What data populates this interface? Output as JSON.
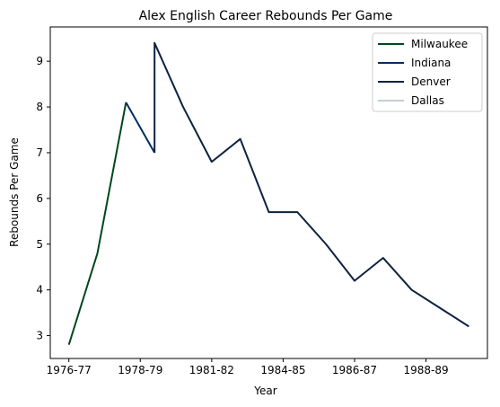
{
  "chart_data": {
    "type": "line",
    "title": "Alex English Career Rebounds Per Game",
    "xlabel": "Year",
    "ylabel": "Rebounds Per Game",
    "x_tick_labels": [
      "1976-77",
      "1978-79",
      "1981-82",
      "1984-85",
      "1986-87",
      "1988-89"
    ],
    "y_ticks": [
      3,
      4,
      5,
      6,
      7,
      8,
      9
    ],
    "ylim": [
      2.5,
      9.75
    ],
    "legend_position": "top-right",
    "grid": false,
    "series": [
      {
        "name": "Milwaukee",
        "color": "#00471B",
        "points": [
          [
            0,
            2.8
          ],
          [
            1,
            4.8
          ],
          [
            2,
            8.1
          ]
        ]
      },
      {
        "name": "Indiana",
        "color": "#002D62",
        "points": [
          [
            2,
            8.1
          ],
          [
            3,
            7.0
          ]
        ]
      },
      {
        "name": "Denver",
        "color": "#0E2240",
        "points": [
          [
            3,
            7.0
          ],
          [
            3,
            9.4
          ],
          [
            4,
            8.0
          ],
          [
            5,
            6.8
          ],
          [
            6,
            7.3
          ],
          [
            7,
            5.7
          ],
          [
            8,
            5.7
          ],
          [
            9,
            5.0
          ],
          [
            10,
            4.2
          ],
          [
            11,
            4.7
          ],
          [
            12,
            4.0
          ],
          [
            13,
            3.6
          ],
          [
            14,
            3.2
          ]
        ]
      },
      {
        "name": "Dallas",
        "color": "#C4CED4",
        "points": []
      }
    ]
  }
}
